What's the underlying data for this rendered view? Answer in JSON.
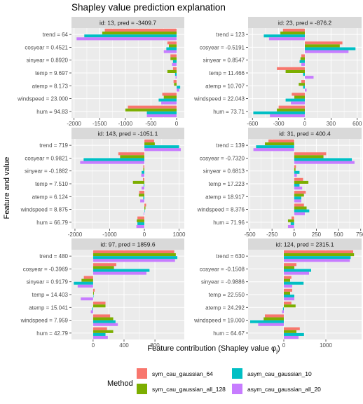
{
  "chart_data": {
    "type": "bar",
    "title": "Shapley value prediction explanation",
    "xlabel": "Feature contribution (Shapley value φ",
    "xlabel_sub": "j",
    "xlabel_end": ")",
    "ylabel": "Feature and value",
    "legend": {
      "title": "Method",
      "placement": "bottom",
      "items": [
        {
          "name": "sym_cau_gaussian_64",
          "color": "#F8766D"
        },
        {
          "name": "sym_cau_gaussian_all_128",
          "color": "#7CAE00"
        },
        {
          "name": "asym_cau_gaussian_10",
          "color": "#00BFC4"
        },
        {
          "name": "asym_cau_gaussian_all_20",
          "color": "#C77CFF"
        }
      ]
    },
    "colors": {
      "sym_cau_gaussian_64": "#F8766D",
      "sym_cau_gaussian_all_128": "#7CAE00",
      "asym_cau_gaussian_10": "#00BFC4",
      "asym_cau_gaussian_all_20": "#C77CFF",
      "panel_background": "#EBEBEB",
      "strip_background": "#D9D9D9"
    },
    "grid": true,
    "panels": [
      {
        "strip": "id: 13, pred = -3409.7",
        "xlim": [
          -2050,
          150
        ],
        "xticks": [
          -2000,
          -1500,
          -1000,
          -500,
          0
        ],
        "xtick_labels": [
          "-2000",
          "-1500",
          "-1000",
          "-500",
          "0"
        ],
        "features": [
          "trend = 64",
          "cosyear = 0.4521",
          "sinyear = 0.8920",
          "temp = 9.697",
          "atemp = 8.173",
          "windspeed = 23.000",
          "hum = 94.83"
        ],
        "values": [
          [
            -1400,
            -180,
            -120,
            -70,
            -60,
            -280,
            -950
          ],
          [
            -1450,
            -150,
            -120,
            -180,
            -50,
            -250,
            -1000
          ],
          [
            -1800,
            -200,
            -70,
            -30,
            70,
            -350,
            -580
          ],
          [
            -1950,
            -250,
            -90,
            -20,
            50,
            -300,
            -580
          ]
        ]
      },
      {
        "strip": "id: 23, pred = -876.2",
        "xlim": [
          -650,
          650
        ],
        "xticks": [
          -600,
          -300,
          0,
          300,
          600
        ],
        "xtick_labels": [
          "-600",
          "-300",
          "0",
          "300",
          "600"
        ],
        "features": [
          "trend = 123",
          "cosyear = -0.5191",
          "sinyear = 0.8547",
          "temp = 11.466",
          "atemp = 10.707",
          "windspeed = 22.043",
          "hum = 73.71"
        ],
        "values": [
          [
            -250,
            430,
            -40,
            -320,
            -40,
            -150,
            -300
          ],
          [
            -280,
            400,
            -50,
            -220,
            -70,
            -120,
            -320
          ],
          [
            -470,
            580,
            -60,
            -20,
            -20,
            -220,
            -590
          ],
          [
            -410,
            500,
            -40,
            100,
            20,
            -160,
            -400
          ]
        ]
      },
      {
        "strip": "id: 143, pred = -1051.1",
        "xlim": [
          -2100,
          1150
        ],
        "xticks": [
          -2000,
          -1000,
          0,
          1000
        ],
        "xtick_labels": [
          "-2000",
          "-1000",
          "0",
          "1000"
        ],
        "features": [
          "trend = 719",
          "cosyear = 0.9821",
          "sinyear = -0.1882",
          "temp = 7.510",
          "atemp = 6.124",
          "windspeed = 8.875",
          "hum = 66.79"
        ],
        "values": [
          [
            280,
            -750,
            -30,
            -40,
            -150,
            50,
            -200
          ],
          [
            300,
            -700,
            -30,
            -330,
            -160,
            30,
            -220
          ],
          [
            1000,
            -1750,
            -80,
            -20,
            -30,
            10,
            -200
          ],
          [
            1050,
            -1850,
            -90,
            -80,
            -120,
            -20,
            -230
          ]
        ]
      },
      {
        "strip": "id: 31, pred = 400.4",
        "xlim": [
          -520,
          760
        ],
        "xticks": [
          -500,
          -250,
          0,
          250,
          500,
          750
        ],
        "xtick_labels": [
          "-500",
          "-250",
          "0",
          "250",
          "500",
          "750"
        ],
        "features": [
          "trend = 139",
          "cosyear = -0.7320",
          "sinyear = 0.6813",
          "temp = 17.223",
          "atemp = 18.917",
          "windspeed = 8.376",
          "hum = 71.96"
        ],
        "values": [
          [
            -290,
            360,
            20,
            100,
            130,
            110,
            -30
          ],
          [
            -330,
            330,
            15,
            160,
            110,
            140,
            -70
          ],
          [
            -430,
            650,
            60,
            60,
            80,
            170,
            -40
          ],
          [
            -460,
            680,
            30,
            90,
            80,
            120,
            -70
          ]
        ]
      },
      {
        "strip": "id: 97, pred = 1859.6",
        "xlim": [
          -280,
          1180
        ],
        "xticks": [
          0,
          400,
          800
        ],
        "xtick_labels": [
          "0",
          "400",
          "800"
        ],
        "features": [
          "trend = 480",
          "cosyear = -0.3969",
          "sinyear = 0.9179",
          "temp = 14.403",
          "atemp = 15.041",
          "windspeed = 7.959",
          "hum = 42.79"
        ],
        "values": [
          [
            1050,
            300,
            -120,
            20,
            160,
            220,
            180
          ],
          [
            1070,
            270,
            -150,
            10,
            160,
            260,
            260
          ],
          [
            1090,
            730,
            -250,
            0,
            -10,
            290,
            160
          ],
          [
            1060,
            690,
            -200,
            -160,
            -30,
            320,
            190
          ]
        ]
      },
      {
        "strip": "id: 124, pred = 2315.1",
        "xlim": [
          -850,
          1850
        ],
        "xticks": [
          0,
          1000
        ],
        "xtick_labels": [
          "0",
          "1000"
        ],
        "features": [
          "trend = 630",
          "cosyear = -0.1508",
          "sinyear = -0.9886",
          "temp = 22.550",
          "atemp = 24.292",
          "windspeed = 19.000",
          "hum = 64.67"
        ],
        "values": [
          [
            1650,
            300,
            180,
            200,
            180,
            -450,
            380
          ],
          [
            1670,
            250,
            150,
            150,
            280,
            -480,
            300
          ],
          [
            1590,
            650,
            470,
            250,
            -20,
            -800,
            480
          ],
          [
            1570,
            600,
            200,
            250,
            -40,
            -610,
            350
          ]
        ]
      }
    ]
  }
}
